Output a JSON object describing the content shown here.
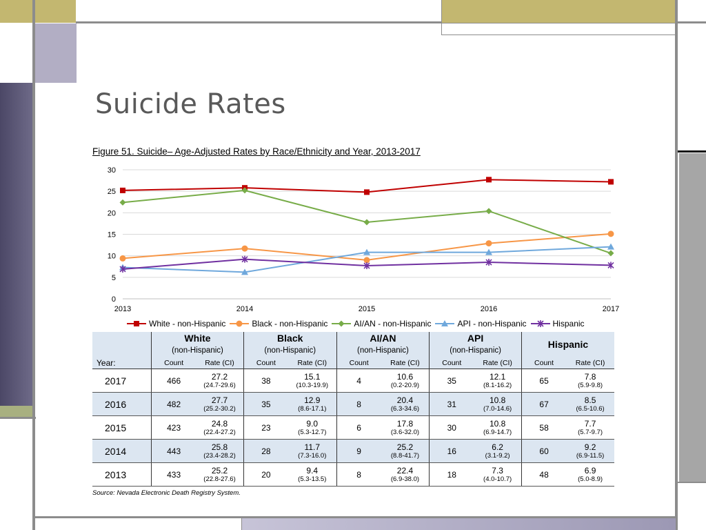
{
  "slide": {
    "title": "Suicide Rates"
  },
  "figure": {
    "title": "Figure 51. Suicide– Age-Adjusted Rates by Race/Ethnicity and Year, 2013-2017",
    "source": "Source: Nevada Electronic Death Registry System."
  },
  "chart_data": {
    "type": "line",
    "title": "",
    "xlabel": "",
    "ylabel": "",
    "x": [
      "2013",
      "2014",
      "2015",
      "2016",
      "2017"
    ],
    "ylim": [
      0,
      30
    ],
    "yticks": [
      "0",
      "5",
      "10",
      "15",
      "20",
      "25",
      "30"
    ],
    "grid": true,
    "legend_position": "bottom",
    "series": [
      {
        "name": "White - non-Hispanic",
        "values": [
          25.2,
          25.8,
          24.8,
          27.7,
          27.2
        ],
        "color": "#c00000",
        "marker": "square"
      },
      {
        "name": "Black - non-Hispanic",
        "values": [
          9.4,
          11.7,
          9.0,
          12.9,
          15.1
        ],
        "color": "#f79646",
        "marker": "circle"
      },
      {
        "name": "AI/AN - non-Hispanic",
        "values": [
          22.4,
          25.2,
          17.8,
          20.4,
          10.6
        ],
        "color": "#77ac48",
        "marker": "diamond"
      },
      {
        "name": "API - non-Hispanic",
        "values": [
          7.3,
          6.2,
          10.8,
          10.8,
          12.1
        ],
        "color": "#6fa8dc",
        "marker": "triangle"
      },
      {
        "name": "Hispanic",
        "values": [
          6.9,
          9.2,
          7.7,
          8.5,
          7.8
        ],
        "color": "#7030a0",
        "marker": "star"
      }
    ]
  },
  "table": {
    "year_label": "Year:",
    "groups": [
      {
        "name": "White",
        "sub": "(non-Hispanic)"
      },
      {
        "name": "Black",
        "sub": "(non-Hispanic)"
      },
      {
        "name": "AI/AN",
        "sub": "(non-Hispanic)"
      },
      {
        "name": "API",
        "sub": "(non-Hispanic)"
      },
      {
        "name": "Hispanic",
        "sub": ""
      }
    ],
    "count_label": "Count",
    "rate_label": "Rate (CI)",
    "rows": [
      {
        "year": "2017",
        "cells": [
          {
            "count": "466",
            "rate": "27.2",
            "ci": "(24.7-29.6)"
          },
          {
            "count": "38",
            "rate": "15.1",
            "ci": "(10.3-19.9)"
          },
          {
            "count": "4",
            "rate": "10.6",
            "ci": "(0.2-20.9)"
          },
          {
            "count": "35",
            "rate": "12.1",
            "ci": "(8.1-16.2)"
          },
          {
            "count": "65",
            "rate": "7.8",
            "ci": "(5.9-9.8)"
          }
        ]
      },
      {
        "year": "2016",
        "cells": [
          {
            "count": "482",
            "rate": "27.7",
            "ci": "(25.2-30.2)"
          },
          {
            "count": "35",
            "rate": "12.9",
            "ci": "(8.6-17.1)"
          },
          {
            "count": "8",
            "rate": "20.4",
            "ci": "(6.3-34.6)"
          },
          {
            "count": "31",
            "rate": "10.8",
            "ci": "(7.0-14.6)"
          },
          {
            "count": "67",
            "rate": "8.5",
            "ci": "(6.5-10.6)"
          }
        ]
      },
      {
        "year": "2015",
        "cells": [
          {
            "count": "423",
            "rate": "24.8",
            "ci": "(22.4-27.2)"
          },
          {
            "count": "23",
            "rate": "9.0",
            "ci": "(5.3-12.7)"
          },
          {
            "count": "6",
            "rate": "17.8",
            "ci": "(3.6-32.0)"
          },
          {
            "count": "30",
            "rate": "10.8",
            "ci": "(6.9-14.7)"
          },
          {
            "count": "58",
            "rate": "7.7",
            "ci": "(5.7-9.7)"
          }
        ]
      },
      {
        "year": "2014",
        "cells": [
          {
            "count": "443",
            "rate": "25.8",
            "ci": "(23.4-28.2)"
          },
          {
            "count": "28",
            "rate": "11.7",
            "ci": "(7.3-16.0)"
          },
          {
            "count": "9",
            "rate": "25.2",
            "ci": "(8.8-41.7)"
          },
          {
            "count": "16",
            "rate": "6.2",
            "ci": "(3.1-9.2)"
          },
          {
            "count": "60",
            "rate": "9.2",
            "ci": "(6.9-11.5)"
          }
        ]
      },
      {
        "year": "2013",
        "cells": [
          {
            "count": "433",
            "rate": "25.2",
            "ci": "(22.8-27.6)"
          },
          {
            "count": "20",
            "rate": "9.4",
            "ci": "(5.3-13.5)"
          },
          {
            "count": "8",
            "rate": "22.4",
            "ci": "(6.9-38.0)"
          },
          {
            "count": "18",
            "rate": "7.3",
            "ci": "(4.0-10.7)"
          },
          {
            "count": "48",
            "rate": "6.9",
            "ci": "(5.0-8.9)"
          }
        ]
      }
    ]
  },
  "colors": {
    "accent_gold": "#c3b770",
    "accent_lavender": "#b2aec4",
    "accent_purple_dark": "#5b5775",
    "frame_gray": "#8c8c8c",
    "table_header_bg": "#dce6f1"
  }
}
